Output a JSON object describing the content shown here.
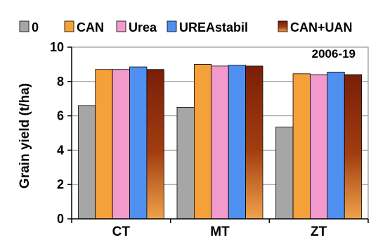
{
  "chart_data": {
    "type": "bar",
    "annotation": "2006-19",
    "xlabel": "",
    "ylabel": "Grain yield (t/ha)",
    "ylim": [
      0,
      10
    ],
    "yticks": [
      0,
      2,
      4,
      6,
      8,
      10
    ],
    "grid": true,
    "legend_position": "top",
    "categories": [
      "CT",
      "MT",
      "ZT"
    ],
    "series": [
      {
        "name": "0",
        "color": "#a6a6a6",
        "values": [
          6.6,
          6.5,
          5.35
        ]
      },
      {
        "name": "CAN",
        "color": "#f5a13a",
        "values": [
          8.7,
          9.0,
          8.45
        ]
      },
      {
        "name": "Urea",
        "color": "#f29acb",
        "values": [
          8.7,
          8.9,
          8.4
        ]
      },
      {
        "name": "UREAstabil",
        "color": "#4f8ff0",
        "values": [
          8.85,
          8.95,
          8.55
        ]
      },
      {
        "name": "CAN+UAN",
        "color": "#a0350f",
        "values": [
          8.7,
          8.9,
          8.4
        ]
      }
    ]
  }
}
